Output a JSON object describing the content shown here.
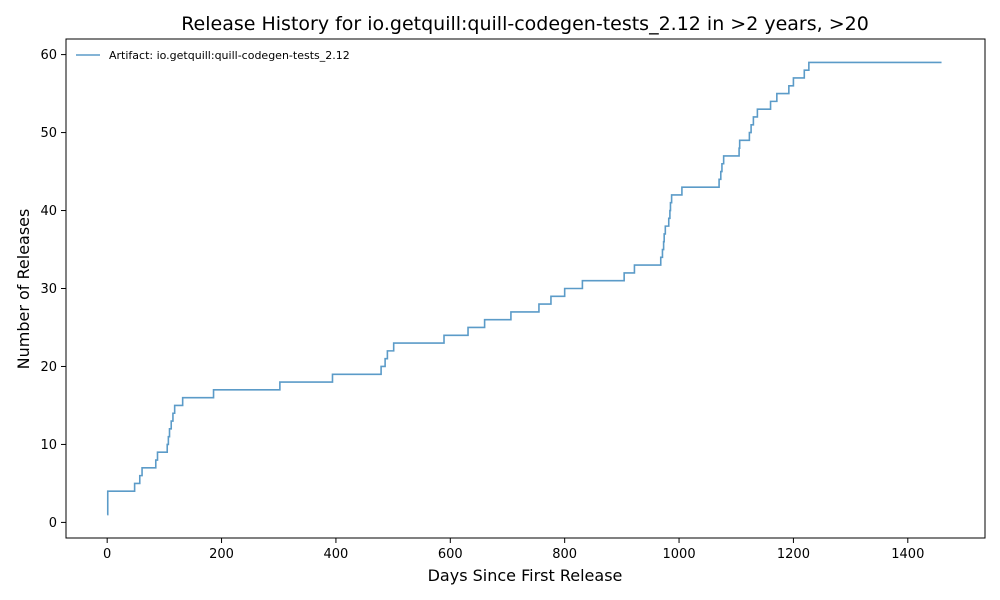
{
  "chart_data": {
    "type": "line",
    "title": "Release History for io.getquill:quill-codegen-tests_2.12 in >2 years, >20",
    "xlabel": "Days Since First Release",
    "ylabel": "Number of Releases",
    "xlim": [
      -72,
      1535
    ],
    "ylim": [
      -2,
      62
    ],
    "xticks": [
      0,
      200,
      400,
      600,
      800,
      1000,
      1200,
      1400
    ],
    "yticks": [
      0,
      10,
      20,
      30,
      40,
      50,
      60
    ],
    "grid": false,
    "legend_position": "top-left",
    "series": [
      {
        "name": "Artifact: io.getquill:quill-codegen-tests_2.12",
        "color": "#5b9bc8",
        "step": "post",
        "points": [
          [
            0,
            1
          ],
          [
            1,
            4
          ],
          [
            48,
            5
          ],
          [
            57,
            6
          ],
          [
            61,
            7
          ],
          [
            85,
            8
          ],
          [
            88,
            9
          ],
          [
            105,
            10
          ],
          [
            107,
            11
          ],
          [
            109,
            12
          ],
          [
            112,
            13
          ],
          [
            115,
            14
          ],
          [
            118,
            15
          ],
          [
            132,
            16
          ],
          [
            186,
            17
          ],
          [
            302,
            18
          ],
          [
            394,
            19
          ],
          [
            479,
            20
          ],
          [
            486,
            21
          ],
          [
            490,
            22
          ],
          [
            501,
            23
          ],
          [
            589,
            24
          ],
          [
            631,
            25
          ],
          [
            660,
            26
          ],
          [
            706,
            27
          ],
          [
            755,
            28
          ],
          [
            776,
            29
          ],
          [
            800,
            30
          ],
          [
            831,
            31
          ],
          [
            904,
            32
          ],
          [
            922,
            33
          ],
          [
            968,
            34
          ],
          [
            971,
            35
          ],
          [
            973,
            36
          ],
          [
            974,
            37
          ],
          [
            976,
            38
          ],
          [
            982,
            39
          ],
          [
            984,
            40
          ],
          [
            985,
            41
          ],
          [
            987,
            42
          ],
          [
            1005,
            43
          ],
          [
            1070,
            44
          ],
          [
            1073,
            45
          ],
          [
            1075,
            46
          ],
          [
            1078,
            47
          ],
          [
            1105,
            48
          ],
          [
            1106,
            49
          ],
          [
            1123,
            50
          ],
          [
            1126,
            51
          ],
          [
            1130,
            52
          ],
          [
            1137,
            53
          ],
          [
            1160,
            54
          ],
          [
            1171,
            55
          ],
          [
            1192,
            56
          ],
          [
            1200,
            57
          ],
          [
            1219,
            58
          ],
          [
            1227,
            59
          ],
          [
            1459,
            59
          ]
        ]
      }
    ]
  }
}
